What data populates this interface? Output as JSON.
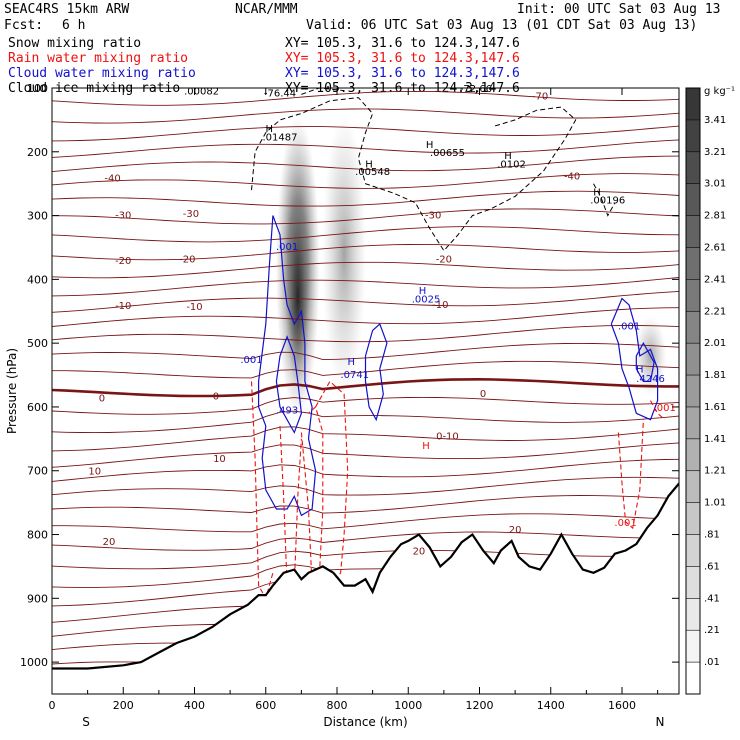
{
  "header": {
    "model": "SEAC4RS 15km ARW",
    "center": "NCAR/MMM",
    "init": "Init: 00 UTC Sat 03 Aug 13",
    "fcst_label": "Fcst:",
    "fcst_value": "6 h",
    "valid": "Valid: 06 UTC Sat 03 Aug 13 (01 CDT Sat 03 Aug 13)"
  },
  "fields": [
    {
      "name": "Snow mixing ratio",
      "xy": "XY= 105.3, 31.6 to 124.3,147.6",
      "color": "#000000"
    },
    {
      "name": "Rain water mixing ratio",
      "xy": "XY= 105.3, 31.6 to 124.3,147.6",
      "color": "#ee1111"
    },
    {
      "name": "Cloud water mixing ratio",
      "xy": "XY= 105.3, 31.6 to 124.3,147.6",
      "color": "#1111cc"
    },
    {
      "name": "Cloud ice mixing ratio",
      "xy": "XY= 105.3, 31.6 to 124.3,147.6",
      "color": "#000000"
    }
  ],
  "colors": {
    "temperature_contour": "#7a1515",
    "rain": "#ee1111",
    "cloud_water": "#1111cc",
    "cloud_ice": "#000000",
    "terrain": "#000000"
  },
  "chart_data": {
    "type": "contour",
    "xlabel": "Distance (km)",
    "ylabel": "Pressure (hPa)",
    "x_range": [
      0,
      1760
    ],
    "y_range": [
      1050,
      100
    ],
    "x_ticks": [
      0,
      200,
      400,
      600,
      800,
      1000,
      1200,
      1400,
      1600
    ],
    "y_ticks": [
      200,
      300,
      400,
      500,
      600,
      700,
      800,
      900,
      1000
    ],
    "y_extra_label": "100",
    "left_end_label": "S",
    "right_end_label": "N",
    "colorbar": {
      "unit": "g kg⁻¹",
      "levels": [
        ".01",
        ".21",
        ".41",
        ".61",
        ".81",
        "1.01",
        "1.21",
        "1.41",
        "1.61",
        "1.81",
        "2.01",
        "2.21",
        "2.41",
        "2.61",
        "2.81",
        "3.01",
        "3.21",
        "3.41"
      ]
    },
    "temperature_contour_labels": [
      {
        "text": "-70",
        "x": 1370,
        "p": 112
      },
      {
        "text": "-40",
        "x": 170,
        "p": 240
      },
      {
        "text": "-40",
        "x": 1460,
        "p": 237
      },
      {
        "text": "-30",
        "x": 200,
        "p": 298
      },
      {
        "text": "-30",
        "x": 390,
        "p": 296
      },
      {
        "text": "-30",
        "x": 1070,
        "p": 298
      },
      {
        "text": "-20",
        "x": 200,
        "p": 370
      },
      {
        "text": "-20",
        "x": 380,
        "p": 367
      },
      {
        "text": "-20",
        "x": 1100,
        "p": 367
      },
      {
        "text": "-10",
        "x": 200,
        "p": 440
      },
      {
        "text": "-10",
        "x": 400,
        "p": 442
      },
      {
        "text": "-10",
        "x": 1090,
        "p": 439
      },
      {
        "text": "0",
        "x": 140,
        "p": 585
      },
      {
        "text": "0",
        "x": 460,
        "p": 582
      },
      {
        "text": "0",
        "x": 1210,
        "p": 578
      },
      {
        "text": "10",
        "x": 120,
        "p": 700
      },
      {
        "text": "10",
        "x": 470,
        "p": 680
      },
      {
        "text": "0-10",
        "x": 1110,
        "p": 645
      },
      {
        "text": "20",
        "x": 160,
        "p": 810
      },
      {
        "text": "20",
        "x": 1030,
        "p": 825
      },
      {
        "text": "20",
        "x": 1300,
        "p": 791
      }
    ],
    "hydrometeor_labels": [
      {
        "text": "-76.44",
        "x": 640,
        "p": 107,
        "field": "cloud_ice"
      },
      {
        "text": "-72.66",
        "x": 1190,
        "p": 100,
        "field": "cloud_ice"
      },
      {
        "text": ".00082",
        "x": 420,
        "p": 104,
        "field": "snow"
      },
      {
        "text": "H",
        "x": 610,
        "p": 163,
        "field": "snow"
      },
      {
        "text": ".01487",
        "x": 640,
        "p": 176,
        "field": "snow"
      },
      {
        "text": "H",
        "x": 1060,
        "p": 188,
        "field": "cloud_ice"
      },
      {
        "text": ".00655",
        "x": 1110,
        "p": 200,
        "field": "cloud_ice"
      },
      {
        "text": "H",
        "x": 1280,
        "p": 205,
        "field": "cloud_ice"
      },
      {
        "text": ".0102",
        "x": 1290,
        "p": 218,
        "field": "cloud_ice"
      },
      {
        "text": "H",
        "x": 890,
        "p": 218,
        "field": "cloud_ice"
      },
      {
        "text": ".00548",
        "x": 900,
        "p": 230,
        "field": "cloud_ice"
      },
      {
        "text": "H",
        "x": 1530,
        "p": 262,
        "field": "cloud_ice"
      },
      {
        "text": ".00196",
        "x": 1560,
        "p": 275,
        "field": "cloud_ice"
      },
      {
        "text": ".001",
        "x": 660,
        "p": 348,
        "field": "cloud_water"
      },
      {
        "text": "H",
        "x": 1040,
        "p": 417,
        "field": "cloud_water"
      },
      {
        "text": ".0025",
        "x": 1050,
        "p": 430,
        "field": "cloud_water"
      },
      {
        "text": ".001",
        "x": 1620,
        "p": 472,
        "field": "cloud_water"
      },
      {
        "text": ".001",
        "x": 560,
        "p": 525,
        "field": "cloud_water"
      },
      {
        "text": "H",
        "x": 840,
        "p": 528,
        "field": "cloud_water"
      },
      {
        "text": ".0741",
        "x": 850,
        "p": 548,
        "field": "cloud_water"
      },
      {
        "text": "H",
        "x": 1650,
        "p": 540,
        "field": "cloud_water"
      },
      {
        "text": ".4246",
        "x": 1680,
        "p": 555,
        "field": "cloud_water"
      },
      {
        "text": ".001",
        "x": 1720,
        "p": 600,
        "field": "rain"
      },
      {
        "text": ".493",
        "x": 660,
        "p": 604,
        "field": "cloud_water"
      },
      {
        "text": "H",
        "x": 1050,
        "p": 660,
        "field": "rain"
      },
      {
        "text": ".001",
        "x": 1610,
        "p": 780,
        "field": "rain"
      }
    ],
    "terrain_surface_hpa": [
      [
        0,
        1010
      ],
      [
        100,
        1010
      ],
      [
        200,
        1005
      ],
      [
        250,
        1000
      ],
      [
        300,
        985
      ],
      [
        350,
        970
      ],
      [
        400,
        960
      ],
      [
        450,
        945
      ],
      [
        500,
        925
      ],
      [
        550,
        910
      ],
      [
        580,
        895
      ],
      [
        600,
        895
      ],
      [
        620,
        880
      ],
      [
        650,
        860
      ],
      [
        680,
        855
      ],
      [
        700,
        870
      ],
      [
        720,
        860
      ],
      [
        760,
        850
      ],
      [
        790,
        860
      ],
      [
        820,
        880
      ],
      [
        850,
        880
      ],
      [
        880,
        870
      ],
      [
        900,
        890
      ],
      [
        920,
        860
      ],
      [
        950,
        835
      ],
      [
        980,
        815
      ],
      [
        1000,
        810
      ],
      [
        1030,
        800
      ],
      [
        1060,
        820
      ],
      [
        1090,
        850
      ],
      [
        1120,
        835
      ],
      [
        1150,
        812
      ],
      [
        1180,
        800
      ],
      [
        1210,
        825
      ],
      [
        1240,
        845
      ],
      [
        1260,
        825
      ],
      [
        1290,
        810
      ],
      [
        1310,
        835
      ],
      [
        1340,
        850
      ],
      [
        1370,
        855
      ],
      [
        1400,
        830
      ],
      [
        1430,
        800
      ],
      [
        1460,
        830
      ],
      [
        1490,
        855
      ],
      [
        1520,
        860
      ],
      [
        1550,
        852
      ],
      [
        1580,
        830
      ],
      [
        1610,
        825
      ],
      [
        1640,
        815
      ],
      [
        1670,
        790
      ],
      [
        1700,
        770
      ],
      [
        1730,
        740
      ],
      [
        1760,
        720
      ]
    ]
  }
}
